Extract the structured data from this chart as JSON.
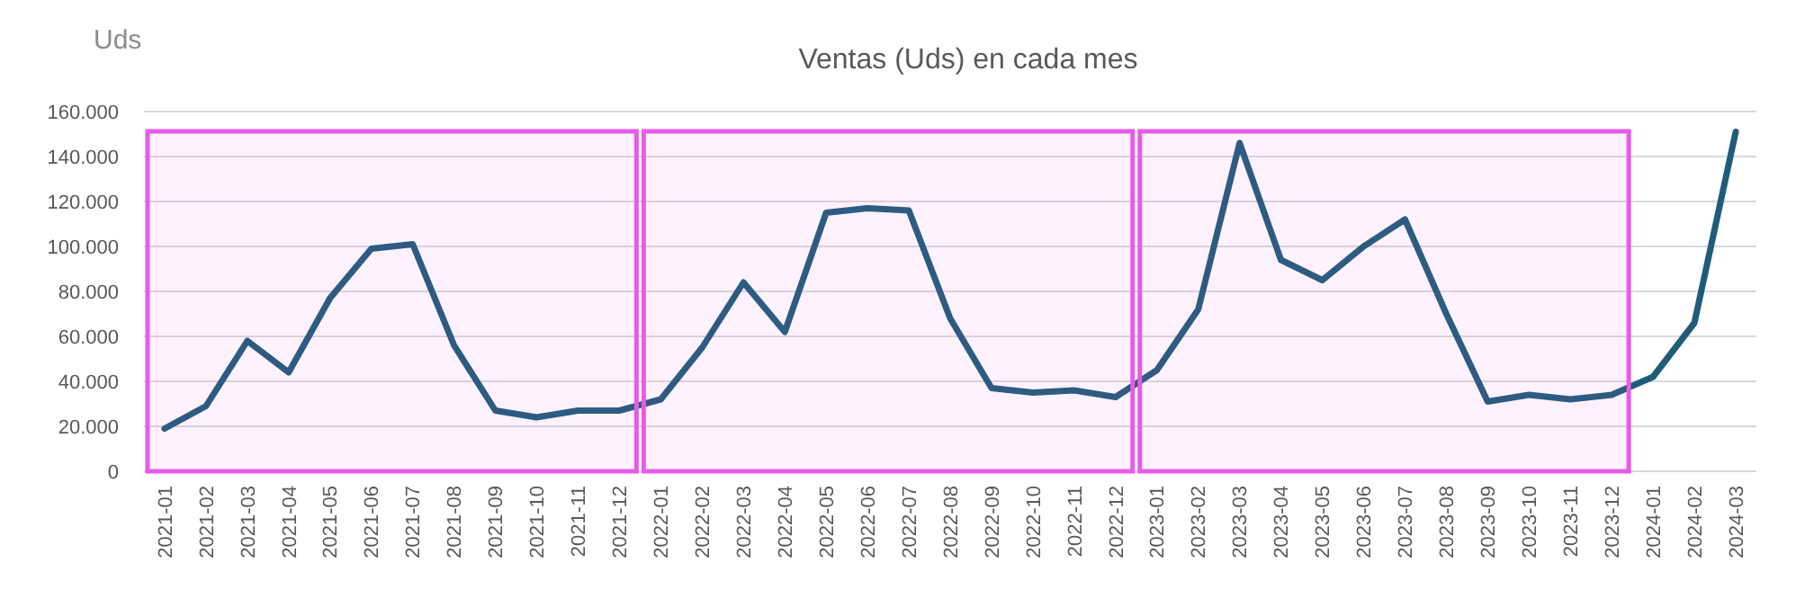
{
  "chart_data": {
    "type": "line",
    "title": "Ventas (Uds) en cada mes",
    "ylabel": "Uds",
    "categories": [
      "2021-01",
      "2021-02",
      "2021-03",
      "2021-04",
      "2021-05",
      "2021-06",
      "2021-07",
      "2021-08",
      "2021-09",
      "2021-10",
      "2021-11",
      "2021-12",
      "2022-01",
      "2022-02",
      "2022-03",
      "2022-04",
      "2022-05",
      "2022-06",
      "2022-07",
      "2022-08",
      "2022-09",
      "2022-10",
      "2022-11",
      "2022-12",
      "2023-01",
      "2023-02",
      "2023-03",
      "2023-04",
      "2023-05",
      "2023-06",
      "2023-07",
      "2023-08",
      "2023-09",
      "2023-10",
      "2023-11",
      "2023-12",
      "2024-01",
      "2024-02",
      "2024-03"
    ],
    "series": [
      {
        "color": "#1f5c7a",
        "values": [
          19000,
          29000,
          58000,
          44000,
          77000,
          99000,
          101000,
          56000,
          27000,
          24000,
          27000,
          27000,
          32000,
          55000,
          84000,
          62000,
          115000,
          117000,
          116000,
          68000,
          37000,
          35000,
          36000,
          33000,
          45000,
          72000,
          146000,
          94000,
          85000,
          100000,
          112000,
          70000,
          31000,
          34000,
          32000,
          34000,
          42000,
          66000,
          151000
        ]
      }
    ],
    "ylim": [
      0,
      160000
    ],
    "yticks": [
      {
        "value": 0,
        "label": "0"
      },
      {
        "value": 20000,
        "label": "20.000"
      },
      {
        "value": 40000,
        "label": "40.000"
      },
      {
        "value": 60000,
        "label": "60.000"
      },
      {
        "value": 80000,
        "label": "80.000"
      },
      {
        "value": 100000,
        "label": "100.000"
      },
      {
        "value": 120000,
        "label": "120.000"
      },
      {
        "value": 140000,
        "label": "140.000"
      },
      {
        "value": 160000,
        "label": "160.000"
      }
    ],
    "grid": "y",
    "marker": "none",
    "line_style": "solid",
    "bands": [
      {
        "axis": "x",
        "from": "2021-01",
        "to": "2021-12",
        "color": "#e65ce6"
      },
      {
        "axis": "x",
        "from": "2022-01",
        "to": "2022-12",
        "color": "#e65ce6"
      },
      {
        "axis": "x",
        "from": "2023-01",
        "to": "2023-12",
        "color": "#e65ce6"
      }
    ]
  }
}
